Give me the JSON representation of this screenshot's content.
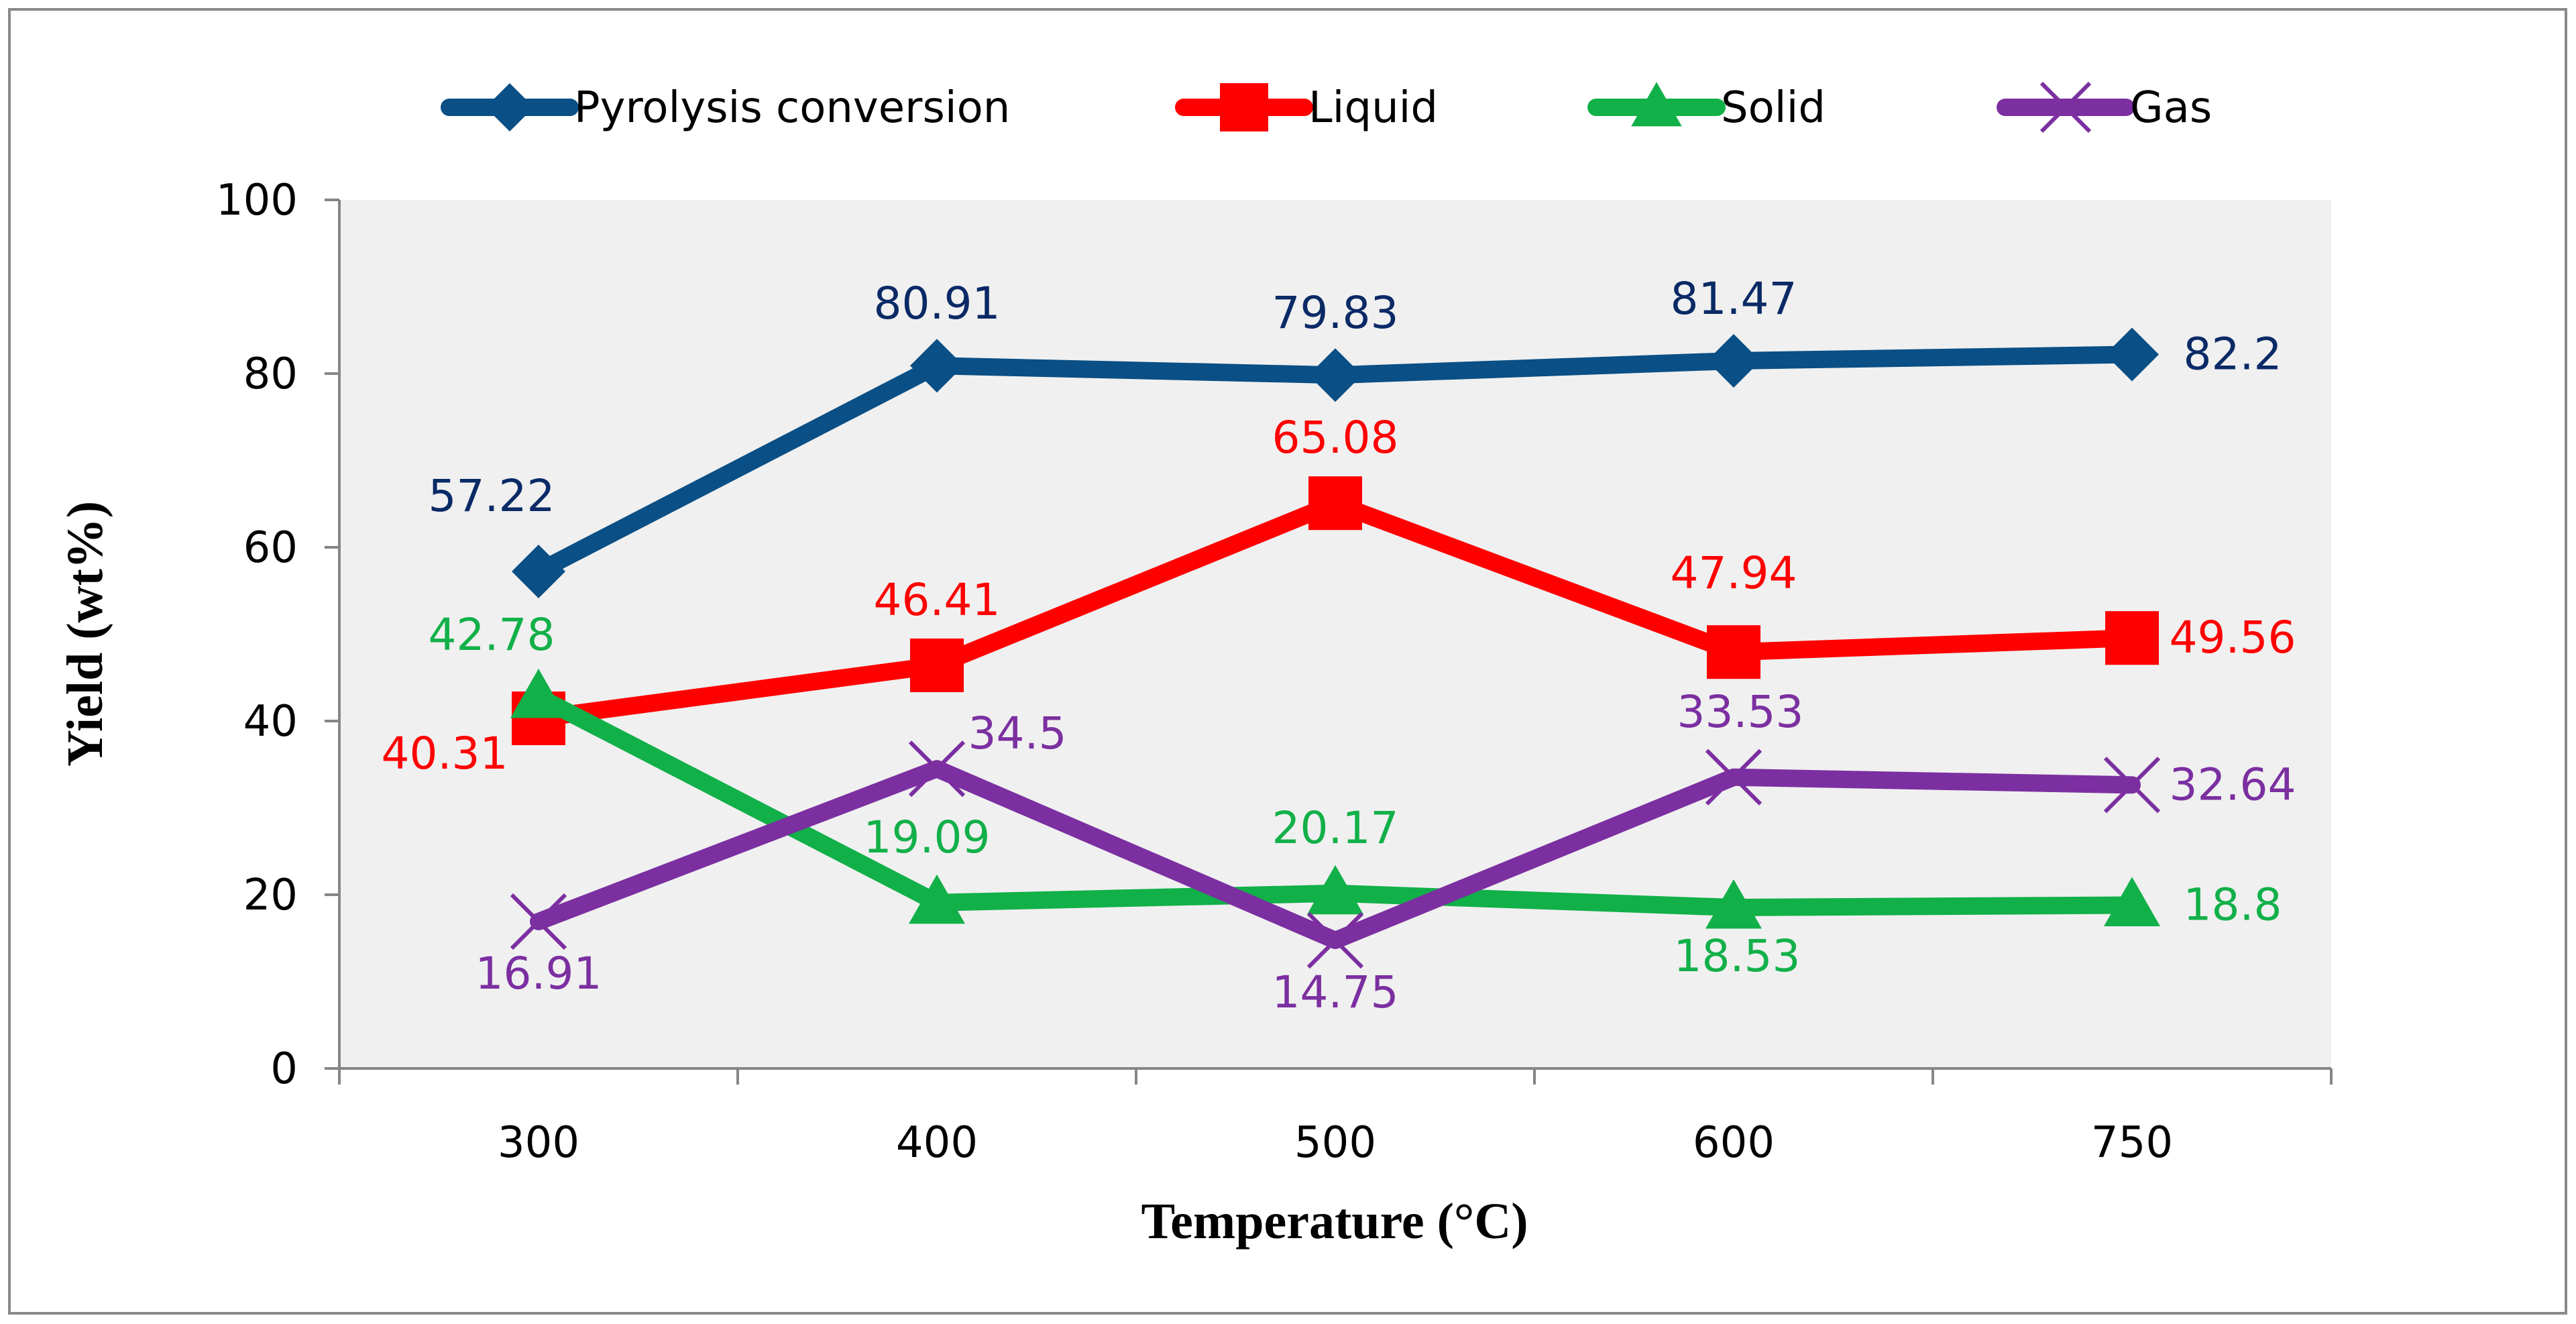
{
  "chart_data": {
    "type": "line",
    "title": "",
    "xlabel": "Temperature (°C)",
    "ylabel": "Yield (wt%)",
    "categories": [
      "300",
      "400",
      "500",
      "600",
      "750"
    ],
    "ylim": [
      0,
      100
    ],
    "yticks": [
      0,
      20,
      40,
      60,
      80,
      100
    ],
    "grid": false,
    "legend_position": "top",
    "series": [
      {
        "name": "Pyrolysis conversion",
        "color": "#0a4f85",
        "label_color": "#0a2a66",
        "marker": "diamond",
        "values": [
          57.22,
          80.91,
          79.83,
          81.47,
          82.2
        ],
        "labels": [
          "57.22",
          "80.91",
          "79.83",
          "81.47",
          "82.2"
        ]
      },
      {
        "name": "Liquid",
        "color": "#ff0000",
        "label_color": "#ff0000",
        "marker": "square",
        "values": [
          40.31,
          46.41,
          65.08,
          47.94,
          49.56
        ],
        "labels": [
          "40.31",
          "46.41",
          "65.08",
          "47.94",
          "49.56"
        ]
      },
      {
        "name": "Solid",
        "color": "#12b049",
        "label_color": "#12b049",
        "marker": "triangle",
        "values": [
          42.78,
          19.09,
          20.17,
          18.53,
          18.8
        ],
        "labels": [
          "42.78",
          "19.09",
          "20.17",
          "18.53",
          "18.8"
        ]
      },
      {
        "name": "Gas",
        "color": "#7b2fa0",
        "label_color": "#7b2fa0",
        "marker": "x",
        "values": [
          16.91,
          34.5,
          14.75,
          33.53,
          32.64
        ],
        "labels": [
          "16.91",
          "34.5",
          "14.75",
          "33.53",
          "32.64"
        ]
      }
    ]
  }
}
